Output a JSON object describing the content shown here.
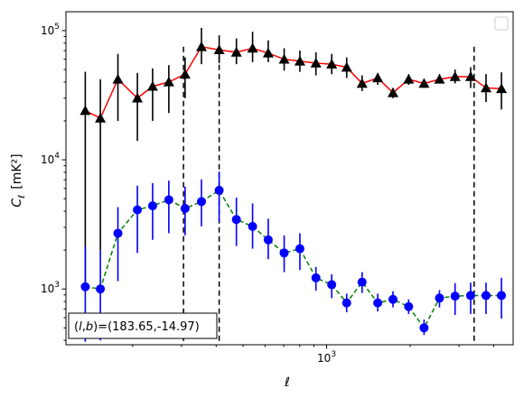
{
  "chart_data": {
    "type": "scatter",
    "title": "",
    "xlabel": "ℓ",
    "ylabel_main": "C",
    "ylabel_sub": "ℓ",
    "ylabel_unit": "[mK²]",
    "x_scale": "log",
    "y_scale": "log",
    "xlim": [
      115,
      4700
    ],
    "ylim": [
      370,
      140000
    ],
    "x_tick_labels": [
      {
        "value": 1000,
        "base": "10",
        "exp": "3"
      }
    ],
    "y_tick_labels": [
      {
        "value": 1000,
        "base": "10",
        "exp": "3"
      },
      {
        "value": 10000,
        "base": "10",
        "exp": "4"
      },
      {
        "value": 100000,
        "base": "10",
        "exp": "5"
      }
    ],
    "grid": false,
    "legend": "top-right",
    "legend_entries": [],
    "vlines": [
      305,
      410,
      3400
    ],
    "annotation": {
      "prefix": "(",
      "l": "l",
      "sep": ",",
      "b": "b",
      "suffix": ")=(183.65,-14.97)",
      "position": "bottom-left"
    },
    "series": [
      {
        "color": "#000000",
        "line_color": "#ff0000",
        "line_style": "solid",
        "marker": "triangle",
        "x": [
          135,
          153,
          177,
          208,
          236,
          270,
          309,
          354,
          410,
          473,
          541,
          616,
          703,
          801,
          915,
          1043,
          1181,
          1342,
          1528,
          1734,
          1975,
          2244,
          2551,
          2903,
          3303,
          3753,
          4265
        ],
        "values": [
          24000,
          21000,
          42000,
          30000,
          37000,
          40000,
          46000,
          75000,
          71000,
          68000,
          73000,
          67000,
          60000,
          58000,
          56000,
          55000,
          52000,
          39000,
          43000,
          33000,
          42000,
          39000,
          42000,
          44000,
          44000,
          36000,
          35500
        ],
        "err_lower": [
          23000,
          19000,
          22000,
          16000,
          17000,
          17000,
          16000,
          20000,
          15000,
          13000,
          16000,
          10000,
          11000,
          10000,
          11000,
          9000,
          9000,
          5000,
          5000,
          3000,
          4000,
          3000,
          3000,
          5000,
          8000,
          8000,
          11000
        ],
        "err_upper": [
          24000,
          21000,
          24000,
          17000,
          14000,
          14000,
          16000,
          30000,
          21000,
          19000,
          25000,
          17000,
          13000,
          12000,
          12000,
          11000,
          10000,
          6000,
          4000,
          3000,
          4000,
          3000,
          4000,
          6000,
          8000,
          10000,
          12000
        ]
      },
      {
        "color": "#0000ff",
        "line_color": "#008000",
        "line_style": "dashed",
        "marker": "circle",
        "x": [
          135,
          153,
          177,
          208,
          236,
          270,
          309,
          354,
          410,
          473,
          541,
          616,
          703,
          801,
          915,
          1043,
          1181,
          1342,
          1528,
          1734,
          1975,
          2244,
          2551,
          2903,
          3303,
          3753,
          4265
        ],
        "values": [
          1040,
          1000,
          2700,
          4100,
          4400,
          4900,
          4200,
          4750,
          5800,
          3450,
          3050,
          2400,
          1900,
          2050,
          1220,
          1080,
          780,
          1130,
          780,
          830,
          730,
          500,
          850,
          880,
          890,
          890,
          890
        ],
        "err_lower": [
          650,
          600,
          1550,
          2200,
          2000,
          2200,
          1600,
          1700,
          2500,
          1300,
          1000,
          700,
          550,
          650,
          250,
          230,
          120,
          200,
          110,
          110,
          90,
          60,
          130,
          250,
          250,
          250,
          300
        ],
        "err_upper": [
          1100,
          1000,
          1600,
          2200,
          2200,
          2000,
          2000,
          2300,
          2300,
          1650,
          1550,
          1100,
          700,
          650,
          260,
          220,
          140,
          220,
          140,
          130,
          100,
          80,
          130,
          230,
          230,
          230,
          330
        ]
      }
    ]
  }
}
